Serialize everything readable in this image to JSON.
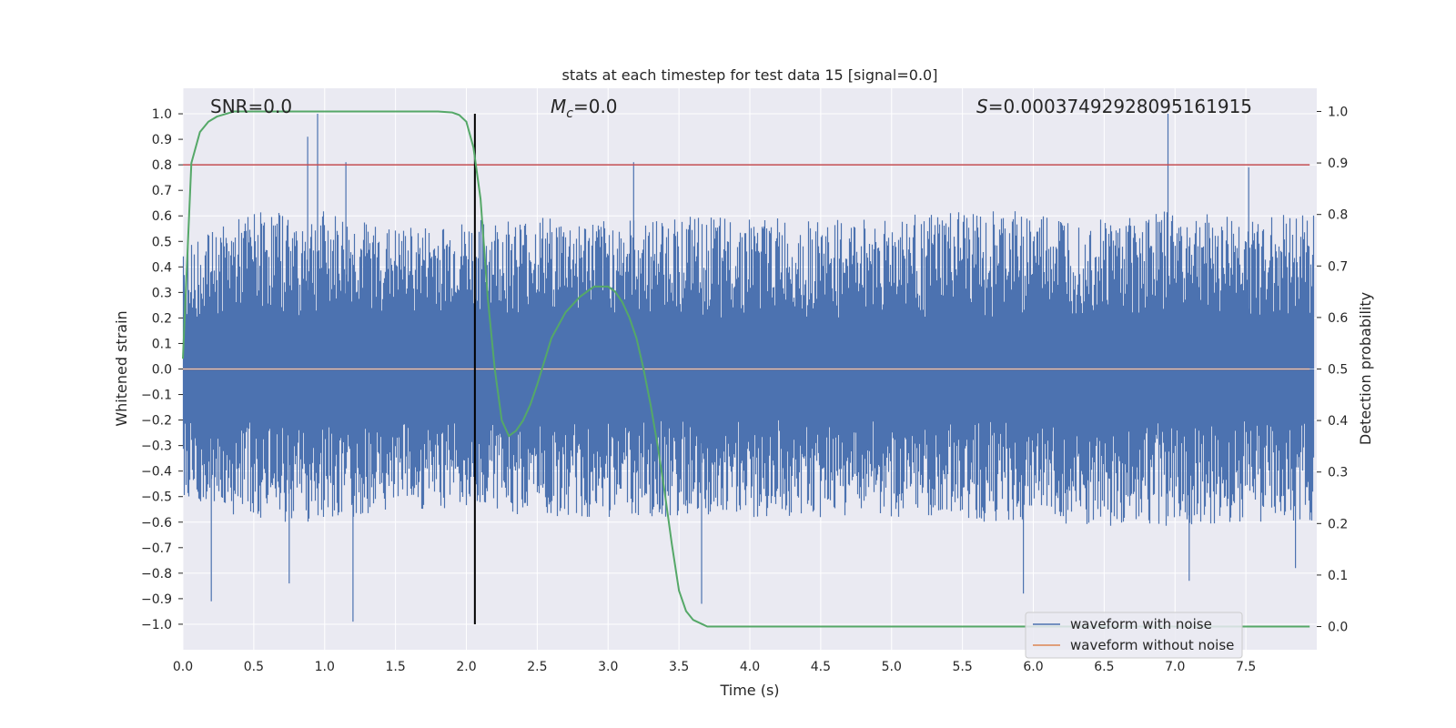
{
  "chart_data": {
    "type": "line",
    "title": "stats at each timestep for test data 15 [signal=0.0]",
    "xlabel": "Time (s)",
    "ylabel": "Whitened strain",
    "y2label": "Detection probability",
    "xlim": [
      0.0,
      8.0
    ],
    "ylim": [
      -1.1,
      1.1
    ],
    "y2lim": [
      -0.045,
      1.045
    ],
    "xticks": [
      "0.0",
      "0.5",
      "1.0",
      "1.5",
      "2.0",
      "2.5",
      "3.0",
      "3.5",
      "4.0",
      "4.5",
      "5.0",
      "5.5",
      "6.0",
      "6.5",
      "7.0",
      "7.5"
    ],
    "yticks": [
      "1.0",
      "0.9",
      "0.8",
      "0.7",
      "0.6",
      "0.5",
      "0.4",
      "0.3",
      "0.2",
      "0.1",
      "0.0",
      "−0.1",
      "−0.2",
      "−0.3",
      "−0.4",
      "−0.5",
      "−0.6",
      "−0.7",
      "−0.8",
      "−0.9",
      "−1.0"
    ],
    "y2ticks": [
      "1.0",
      "0.9",
      "0.8",
      "0.7",
      "0.6",
      "0.5",
      "0.4",
      "0.3",
      "0.2",
      "0.1",
      "0.0"
    ],
    "annotations": {
      "snr": "SNR=0.0",
      "mc_symbol": "M",
      "mc_sub": "c",
      "mc_value": "=0.0",
      "s_symbol": "S",
      "s_value": "=0.0003749292809516191 5"
    },
    "threshold": 0.8,
    "vline_x": 2.06,
    "legend": {
      "placement": "lower-right",
      "entries": [
        "waveform with noise",
        "waveform without noise"
      ]
    },
    "noise_envelope": {
      "description_free": true,
      "x": [
        0.0,
        0.5,
        1.0,
        1.5,
        2.0,
        2.5,
        3.0,
        3.5,
        4.0,
        4.5,
        5.0,
        5.5,
        6.0,
        6.5,
        7.0,
        7.5,
        8.0
      ],
      "upper": [
        0.48,
        0.62,
        0.62,
        0.55,
        0.58,
        0.6,
        0.58,
        0.6,
        0.6,
        0.58,
        0.6,
        0.62,
        0.62,
        0.6,
        0.62,
        0.6,
        0.62
      ],
      "lower": [
        -0.5,
        -0.6,
        -0.6,
        -0.55,
        -0.55,
        -0.58,
        -0.58,
        -0.58,
        -0.58,
        -0.58,
        -0.58,
        -0.6,
        -0.6,
        -0.62,
        -0.62,
        -0.6,
        -0.6
      ],
      "spikes": [
        [
          0.95,
          1.0
        ],
        [
          0.88,
          0.91
        ],
        [
          1.15,
          0.81
        ],
        [
          3.18,
          0.81
        ],
        [
          6.95,
          1.0
        ],
        [
          7.52,
          0.79
        ],
        [
          1.2,
          -0.99
        ],
        [
          0.2,
          -0.91
        ],
        [
          3.66,
          -0.92
        ],
        [
          5.93,
          -0.88
        ],
        [
          7.1,
          -0.83
        ],
        [
          0.75,
          -0.84
        ],
        [
          7.85,
          -0.78
        ]
      ]
    },
    "series": [
      {
        "name": "waveform with noise",
        "color": "#4c72b0"
      },
      {
        "name": "waveform without noise",
        "color": "#dd8452",
        "x": [
          0.0,
          7.95
        ],
        "y": [
          0.0,
          0.0
        ]
      },
      {
        "name": "",
        "color": "#55a868",
        "axis": "right",
        "x": [
          0.0,
          0.06,
          0.12,
          0.18,
          0.24,
          0.3,
          0.36,
          0.45,
          0.6,
          1.0,
          1.5,
          1.8,
          1.9,
          1.95,
          2.0,
          2.05,
          2.1,
          2.15,
          2.2,
          2.25,
          2.3,
          2.35,
          2.4,
          2.45,
          2.5,
          2.6,
          2.7,
          2.8,
          2.9,
          3.0,
          3.05,
          3.1,
          3.15,
          3.2,
          3.25,
          3.3,
          3.35,
          3.4,
          3.45,
          3.5,
          3.55,
          3.6,
          3.7,
          4.0,
          5.0,
          6.0,
          7.0,
          7.95
        ],
        "y": [
          0.52,
          0.9,
          0.96,
          0.98,
          0.99,
          0.995,
          1.0,
          1.0,
          1.0,
          1.0,
          1.0,
          1.0,
          0.998,
          0.993,
          0.98,
          0.93,
          0.83,
          0.64,
          0.5,
          0.4,
          0.37,
          0.38,
          0.4,
          0.43,
          0.47,
          0.56,
          0.61,
          0.64,
          0.66,
          0.66,
          0.65,
          0.63,
          0.6,
          0.56,
          0.5,
          0.43,
          0.35,
          0.26,
          0.16,
          0.07,
          0.03,
          0.013,
          0.0,
          0.0,
          0.0,
          0.0,
          0.0,
          0.0
        ]
      }
    ]
  }
}
